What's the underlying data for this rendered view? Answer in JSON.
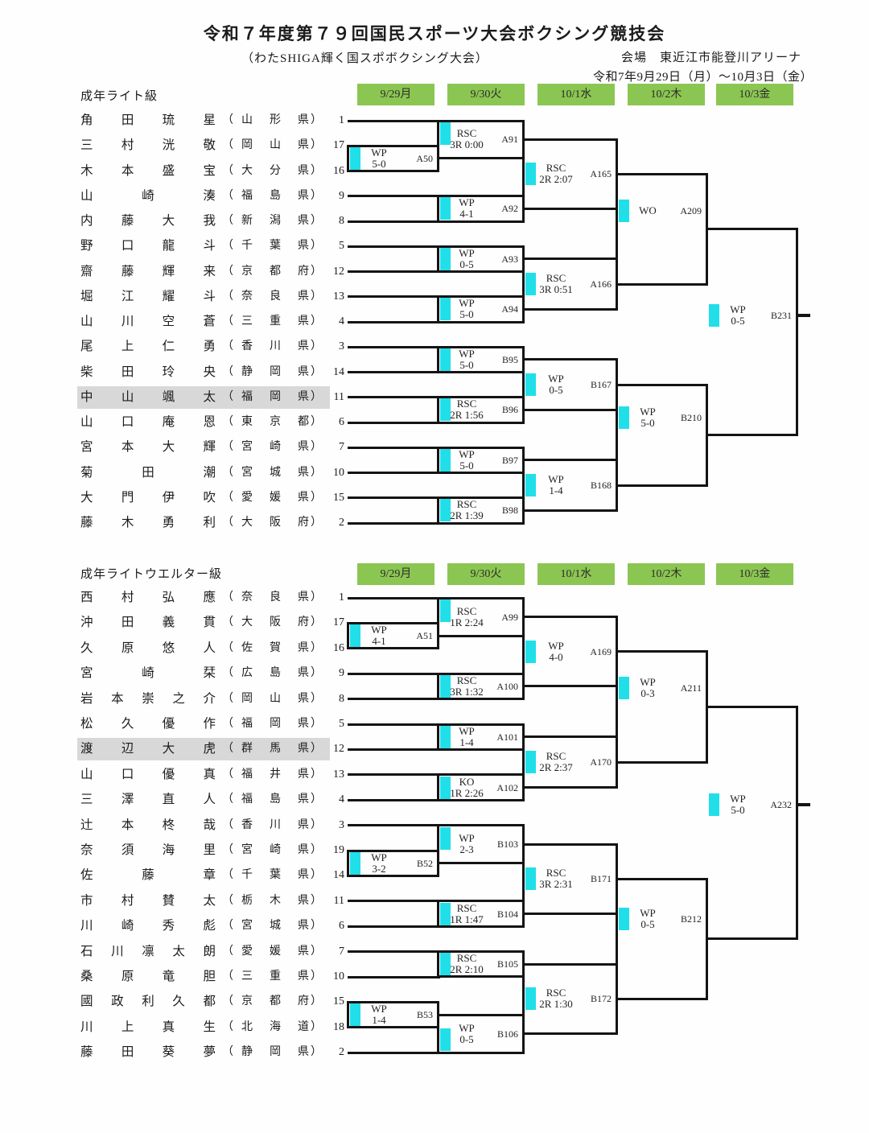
{
  "page": {
    "title": "令和７年度第７９回国民スポーツ大会ボクシング競技会",
    "subtitle": "（わたSHIGA輝く国スポボクシング大会）",
    "venue": "会場　東近江市能登川アリーナ",
    "dates": "令和7年9月29日（月）～10月3日（金）"
  },
  "day_headers": [
    "9/29月",
    "9/30火",
    "10/1水",
    "10/2木",
    "10/3金"
  ],
  "colors": {
    "header_green": "#8cc652",
    "winner_cyan": "#21dfe8",
    "highlight_gray": "#d8d8d8",
    "line_black": "#141414"
  },
  "brackets": [
    {
      "weight_class": "成年ライト級",
      "entrants": [
        {
          "name": "角田琉星",
          "pref": "山形県",
          "seed": "1"
        },
        {
          "name": "三村洸敬",
          "pref": "岡山県",
          "seed": "17"
        },
        {
          "name": "木本盛宝",
          "pref": "大分県",
          "seed": "16"
        },
        {
          "name": "山崎湊",
          "pref": "福島県",
          "seed": "9"
        },
        {
          "name": "内藤大我",
          "pref": "新潟県",
          "seed": "8"
        },
        {
          "name": "野口龍斗",
          "pref": "千葉県",
          "seed": "5"
        },
        {
          "name": "齋藤輝来",
          "pref": "京都府",
          "seed": "12"
        },
        {
          "name": "堀江耀斗",
          "pref": "奈良県",
          "seed": "13"
        },
        {
          "name": "山川空蒼",
          "pref": "三重県",
          "seed": "4"
        },
        {
          "name": "尾上仁勇",
          "pref": "香川県",
          "seed": "3"
        },
        {
          "name": "柴田玲央",
          "pref": "静岡県",
          "seed": "14"
        },
        {
          "name": "中山颯太",
          "pref": "福岡県",
          "seed": "11",
          "highlight": true
        },
        {
          "name": "山口庵恩",
          "pref": "東京都",
          "seed": "6"
        },
        {
          "name": "宮本大輝",
          "pref": "宮崎県",
          "seed": "7"
        },
        {
          "name": "菊田潮",
          "pref": "宮城県",
          "seed": "10"
        },
        {
          "name": "大門伊吹",
          "pref": "愛媛県",
          "seed": "15"
        },
        {
          "name": "藤木勇利",
          "pref": "大阪府",
          "seed": "2"
        }
      ],
      "matches": [
        {
          "code": "A50",
          "round": 0,
          "top": "r1",
          "bottom": "r2",
          "method": "WP",
          "detail": "5-0"
        },
        {
          "code": "A91",
          "round": 1,
          "top": "r0",
          "bottom": "A50",
          "method": "RSC",
          "detail": "3R 0:00",
          "mark": "top"
        },
        {
          "code": "A92",
          "round": 1,
          "top": "r3",
          "bottom": "r4",
          "method": "WP",
          "detail": "4-1"
        },
        {
          "code": "A93",
          "round": 1,
          "top": "r5",
          "bottom": "r6",
          "method": "WP",
          "detail": "0-5"
        },
        {
          "code": "A94",
          "round": 1,
          "top": "r7",
          "bottom": "r8",
          "method": "WP",
          "detail": "5-0"
        },
        {
          "code": "B95",
          "round": 1,
          "top": "r9",
          "bottom": "r10",
          "method": "WP",
          "detail": "5-0"
        },
        {
          "code": "B96",
          "round": 1,
          "top": "r11",
          "bottom": "r12",
          "method": "RSC",
          "detail": "2R 1:56"
        },
        {
          "code": "B97",
          "round": 1,
          "top": "r13",
          "bottom": "r14",
          "method": "WP",
          "detail": "5-0"
        },
        {
          "code": "B98",
          "round": 1,
          "top": "r15",
          "bottom": "r16",
          "method": "RSC",
          "detail": "2R 1:39"
        },
        {
          "code": "A165",
          "round": 2,
          "top": "A91",
          "bottom": "A92",
          "method": "RSC",
          "detail": "2R 2:07"
        },
        {
          "code": "A166",
          "round": 2,
          "top": "A93",
          "bottom": "A94",
          "method": "RSC",
          "detail": "3R 0:51"
        },
        {
          "code": "B167",
          "round": 2,
          "top": "B95",
          "bottom": "B96",
          "method": "WP",
          "detail": "0-5"
        },
        {
          "code": "B168",
          "round": 2,
          "top": "B97",
          "bottom": "B98",
          "method": "WP",
          "detail": "1-4"
        },
        {
          "code": "A209",
          "round": 3,
          "top": "A165",
          "bottom": "A166",
          "method": "WO",
          "detail": ""
        },
        {
          "code": "B210",
          "round": 3,
          "top": "B167",
          "bottom": "B168",
          "method": "WP",
          "detail": "5-0"
        },
        {
          "code": "B231",
          "round": 4,
          "top": "A209",
          "bottom": "B210",
          "method": "WP",
          "detail": "0-5",
          "final": true
        }
      ]
    },
    {
      "weight_class": "成年ライトウエルター級",
      "entrants": [
        {
          "name": "西村弘應",
          "pref": "奈良県",
          "seed": "1"
        },
        {
          "name": "沖田義貫",
          "pref": "大阪府",
          "seed": "17"
        },
        {
          "name": "久原悠人",
          "pref": "佐賀県",
          "seed": "16"
        },
        {
          "name": "宮崎栞",
          "pref": "広島県",
          "seed": "9"
        },
        {
          "name": "岩本崇之介",
          "pref": "岡山県",
          "seed": "8"
        },
        {
          "name": "松久優作",
          "pref": "福岡県",
          "seed": "5"
        },
        {
          "name": "渡辺大虎",
          "pref": "群馬県",
          "seed": "12",
          "highlight": true
        },
        {
          "name": "山口優真",
          "pref": "福井県",
          "seed": "13"
        },
        {
          "name": "三澤直人",
          "pref": "福島県",
          "seed": "4"
        },
        {
          "name": "辻本柊哉",
          "pref": "香川県",
          "seed": "3"
        },
        {
          "name": "奈須海里",
          "pref": "宮崎県",
          "seed": "19"
        },
        {
          "name": "佐藤章",
          "pref": "千葉県",
          "seed": "14"
        },
        {
          "name": "市村賛太",
          "pref": "栃木県",
          "seed": "11"
        },
        {
          "name": "川崎秀彪",
          "pref": "宮城県",
          "seed": "6"
        },
        {
          "name": "石川凛太朗",
          "pref": "愛媛県",
          "seed": "7"
        },
        {
          "name": "桑原竜胆",
          "pref": "三重県",
          "seed": "10"
        },
        {
          "name": "國政利久都",
          "pref": "京都府",
          "seed": "15"
        },
        {
          "name": "川上真生",
          "pref": "北海道",
          "seed": "18"
        },
        {
          "name": "藤田葵夢",
          "pref": "静岡県",
          "seed": "2"
        }
      ],
      "matches": [
        {
          "code": "A51",
          "round": 0,
          "top": "r1",
          "bottom": "r2",
          "method": "WP",
          "detail": "4-1"
        },
        {
          "code": "B52",
          "round": 0,
          "top": "r10",
          "bottom": "r11",
          "method": "WP",
          "detail": "3-2"
        },
        {
          "code": "B53",
          "round": 0,
          "top": "r16",
          "bottom": "r17",
          "method": "WP",
          "detail": "1-4"
        },
        {
          "code": "A99",
          "round": 1,
          "top": "r0",
          "bottom": "A51",
          "method": "RSC",
          "detail": "1R 2:24",
          "mark": "top"
        },
        {
          "code": "A100",
          "round": 1,
          "top": "r3",
          "bottom": "r4",
          "method": "RSC",
          "detail": "3R 1:32"
        },
        {
          "code": "A101",
          "round": 1,
          "top": "r5",
          "bottom": "r6",
          "method": "WP",
          "detail": "1-4"
        },
        {
          "code": "A102",
          "round": 1,
          "top": "r7",
          "bottom": "r8",
          "method": "KO",
          "detail": "1R 2:26"
        },
        {
          "code": "B103",
          "round": 1,
          "top": "r9",
          "bottom": "B52",
          "method": "WP",
          "detail": "2-3",
          "mark": "top"
        },
        {
          "code": "B104",
          "round": 1,
          "top": "r12",
          "bottom": "r13",
          "method": "RSC",
          "detail": "1R 1:47"
        },
        {
          "code": "B105",
          "round": 1,
          "top": "r14",
          "bottom": "r15",
          "method": "RSC",
          "detail": "2R 2:10"
        },
        {
          "code": "B106",
          "round": 1,
          "top": "B53",
          "bottom": "r18",
          "method": "WP",
          "detail": "0-5",
          "mark": "bottom"
        },
        {
          "code": "A169",
          "round": 2,
          "top": "A99",
          "bottom": "A100",
          "method": "WP",
          "detail": "4-0"
        },
        {
          "code": "A170",
          "round": 2,
          "top": "A101",
          "bottom": "A102",
          "method": "RSC",
          "detail": "2R 2:37"
        },
        {
          "code": "B171",
          "round": 2,
          "top": "B103",
          "bottom": "B104",
          "method": "RSC",
          "detail": "3R 2:31"
        },
        {
          "code": "B172",
          "round": 2,
          "top": "B105",
          "bottom": "B106",
          "method": "RSC",
          "detail": "2R 1:30"
        },
        {
          "code": "A211",
          "round": 3,
          "top": "A169",
          "bottom": "A170",
          "method": "WP",
          "detail": "0-3"
        },
        {
          "code": "B212",
          "round": 3,
          "top": "B171",
          "bottom": "B172",
          "method": "WP",
          "detail": "0-5"
        },
        {
          "code": "A232",
          "round": 4,
          "top": "A211",
          "bottom": "B212",
          "method": "WP",
          "detail": "5-0",
          "final": true
        }
      ]
    }
  ]
}
